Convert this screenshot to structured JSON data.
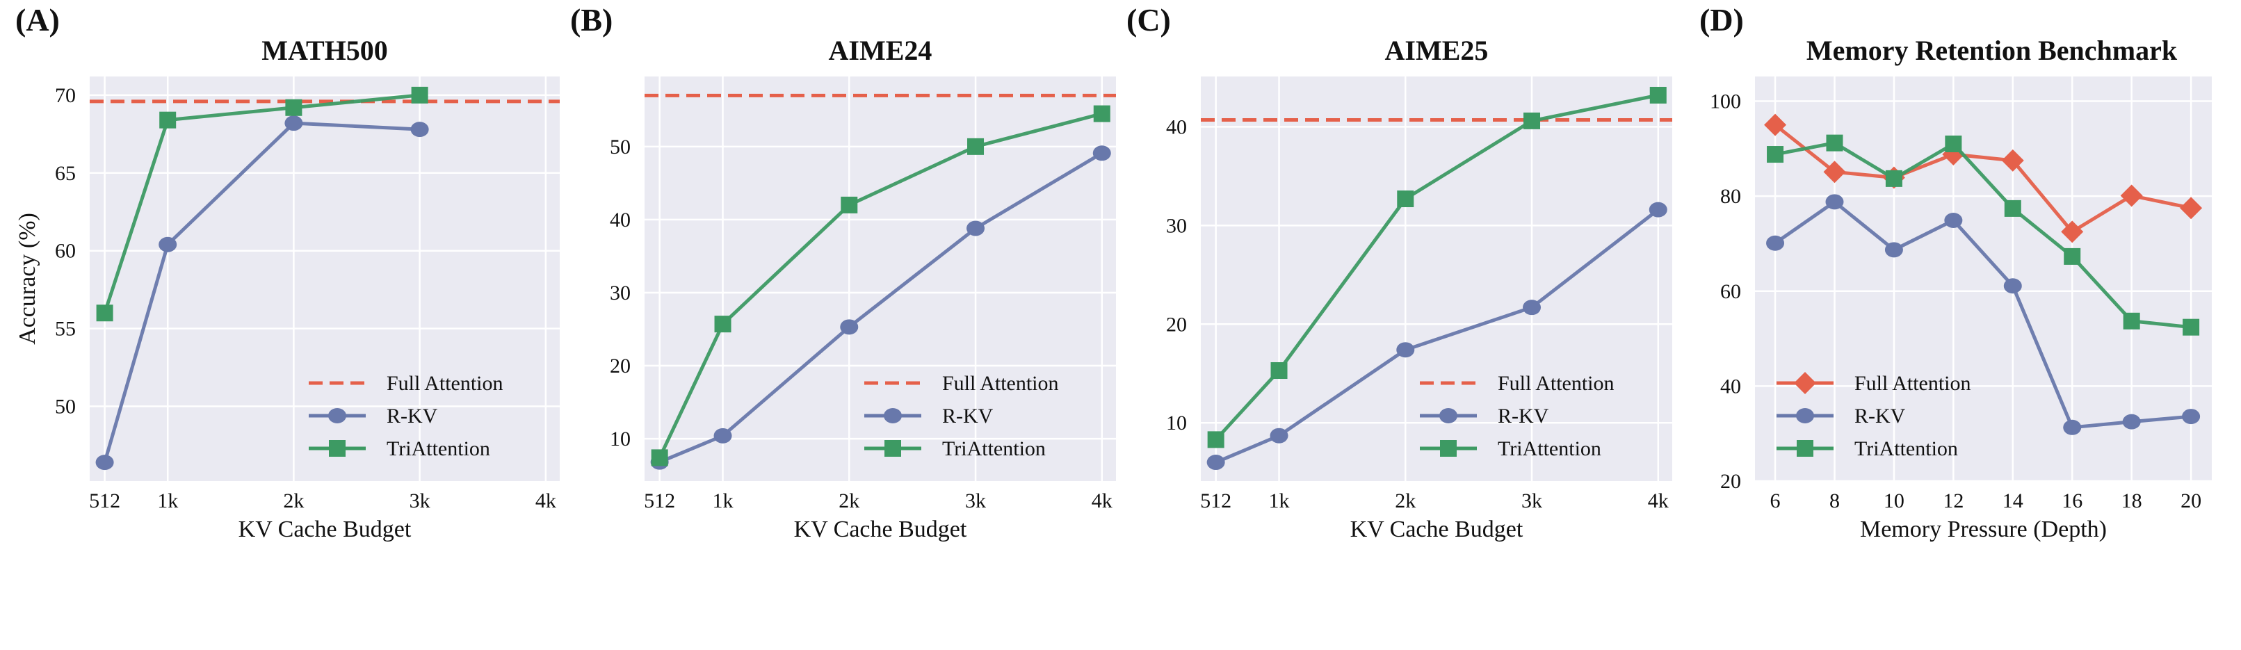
{
  "chart_data": [
    {
      "panel_label": "(A)",
      "type": "line",
      "title": "MATH500",
      "xlabel": "KV Cache Budget",
      "ylabel": "Accuracy (%)",
      "x": [
        512,
        1024,
        2048,
        3072,
        4096
      ],
      "xtick_labels": [
        "512",
        "1k",
        "2k",
        "3k",
        "4k"
      ],
      "xlim": [
        390,
        4210
      ],
      "ylim": [
        45.2,
        71.2
      ],
      "yticks": [
        50,
        55,
        60,
        65,
        70
      ],
      "grid": true,
      "legend_position": "bottom-right",
      "reference_line": {
        "name": "Full Attention",
        "value": 69.6,
        "color": "#e5604a",
        "style": "dashed"
      },
      "series": [
        {
          "name": "R-KV",
          "marker": "circle",
          "color": "#6878ab",
          "values": [
            46.4,
            60.4,
            68.2,
            67.8,
            null
          ]
        },
        {
          "name": "TriAttention",
          "marker": "square",
          "color": "#3d9a63",
          "values": [
            56.0,
            68.4,
            69.2,
            70.0,
            null
          ]
        }
      ]
    },
    {
      "panel_label": "(B)",
      "type": "line",
      "title": "AIME24",
      "xlabel": "KV Cache Budget",
      "ylabel": "",
      "x": [
        512,
        1024,
        2048,
        3072,
        4096
      ],
      "xtick_labels": [
        "512",
        "1k",
        "2k",
        "3k",
        "4k"
      ],
      "xlim": [
        390,
        4210
      ],
      "ylim": [
        4.2,
        59.6
      ],
      "yticks": [
        10,
        20,
        30,
        40,
        50
      ],
      "grid": true,
      "legend_position": "bottom-right",
      "reference_line": {
        "name": "Full Attention",
        "value": 57.0,
        "color": "#e5604a",
        "style": "dashed"
      },
      "series": [
        {
          "name": "R-KV",
          "marker": "circle",
          "color": "#6878ab",
          "values": [
            6.8,
            10.4,
            25.3,
            38.8,
            49.1
          ]
        },
        {
          "name": "TriAttention",
          "marker": "square",
          "color": "#3d9a63",
          "values": [
            7.4,
            25.7,
            42.0,
            50.0,
            54.5
          ]
        }
      ]
    },
    {
      "panel_label": "(C)",
      "type": "line",
      "title": "AIME25",
      "xlabel": "KV Cache Budget",
      "ylabel": "",
      "x": [
        512,
        1024,
        2048,
        3072,
        4096
      ],
      "xtick_labels": [
        "512",
        "1k",
        "2k",
        "3k",
        "4k"
      ],
      "xlim": [
        390,
        4210
      ],
      "ylim": [
        4.1,
        45.1
      ],
      "yticks": [
        10,
        20,
        30,
        40
      ],
      "grid": true,
      "legend_position": "bottom-right",
      "reference_line": {
        "name": "Full Attention",
        "value": 40.7,
        "color": "#e5604a",
        "style": "dashed"
      },
      "series": [
        {
          "name": "R-KV",
          "marker": "circle",
          "color": "#6878ab",
          "values": [
            6.0,
            8.7,
            17.4,
            21.7,
            31.6
          ]
        },
        {
          "name": "TriAttention",
          "marker": "square",
          "color": "#3d9a63",
          "values": [
            8.3,
            15.3,
            32.7,
            40.6,
            43.2
          ]
        }
      ]
    },
    {
      "panel_label": "(D)",
      "type": "line",
      "title": "Memory Retention Benchmark",
      "xlabel": "Memory Pressure (Depth)",
      "ylabel": "",
      "x": [
        6,
        8,
        10,
        12,
        14,
        16,
        18,
        20
      ],
      "xtick_labels": [
        "6",
        "8",
        "10",
        "12",
        "14",
        "16",
        "18",
        "20"
      ],
      "xlim": [
        5.32,
        20.7
      ],
      "ylim": [
        20,
        105.2
      ],
      "yticks": [
        20,
        40,
        60,
        80,
        100
      ],
      "grid": true,
      "legend_position": "bottom-left",
      "reference_line": null,
      "series": [
        {
          "name": "Full Attention",
          "marker": "diamond",
          "color": "#e5604a",
          "values": [
            95.0,
            85.1,
            83.9,
            88.8,
            87.5,
            72.5,
            80.1,
            77.5
          ]
        },
        {
          "name": "R-KV",
          "marker": "circle",
          "color": "#6878ab",
          "values": [
            70.1,
            78.8,
            68.7,
            74.9,
            61.1,
            31.3,
            32.5,
            33.6
          ]
        },
        {
          "name": "TriAttention",
          "marker": "square",
          "color": "#3d9a63",
          "values": [
            88.8,
            91.2,
            83.7,
            91.0,
            77.4,
            67.3,
            53.7,
            52.4
          ]
        }
      ]
    }
  ]
}
